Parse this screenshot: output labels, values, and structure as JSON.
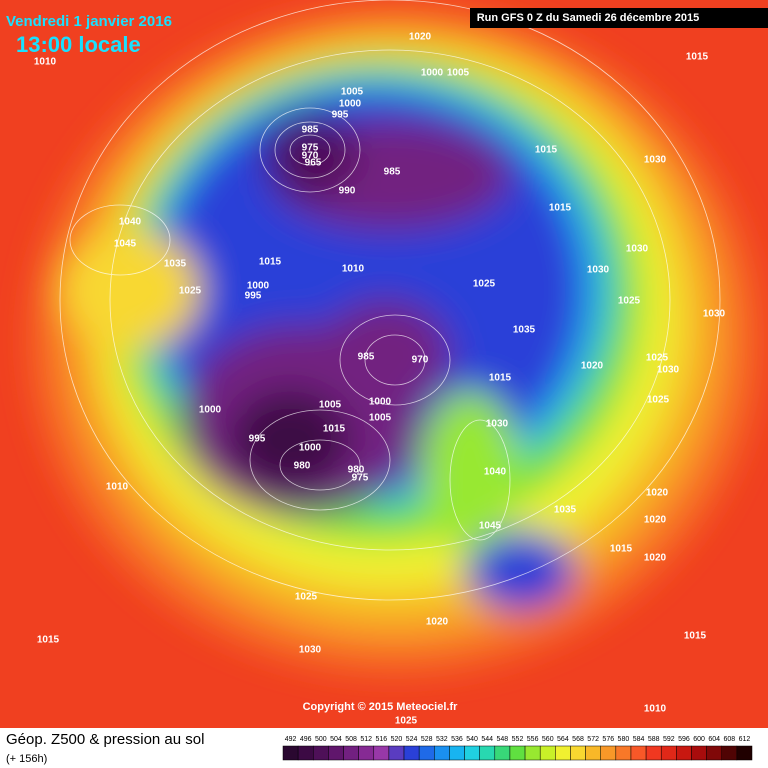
{
  "header": {
    "date": "Vendredi 1 janvier 2016",
    "time": "13:00 locale",
    "run": "Run GFS 0 Z du Samedi 26 décembre 2015"
  },
  "copyright": "Copyright © 2015 Meteociel.fr",
  "footer": {
    "title": "Géop. Z500 & pression au sol",
    "lead": "(+ 156h)"
  },
  "isobar_labels": [
    1010,
    1020,
    1005,
    1000,
    1005,
    1000,
    995,
    985,
    975,
    970,
    965,
    985,
    990,
    1015,
    1015,
    1030,
    1015,
    1030,
    1030,
    1025,
    1030,
    1040,
    1045,
    1035,
    1015,
    1010,
    1025,
    1000,
    995,
    1025,
    1035,
    1020,
    1025,
    1030,
    1025,
    985,
    970,
    1000,
    1005,
    1000,
    1005,
    1015,
    995,
    1030,
    1040,
    1000,
    980,
    980,
    975,
    1010,
    1035,
    1045,
    1020,
    1020,
    1015,
    1020,
    1025,
    1020,
    1030,
    1015,
    1015,
    1010,
    1025,
    1015
  ],
  "colorbar": {
    "values": [
      492,
      496,
      500,
      504,
      508,
      512,
      516,
      520,
      524,
      528,
      532,
      536,
      540,
      544,
      548,
      552,
      556,
      560,
      564,
      568,
      572,
      576,
      580,
      584,
      588,
      592,
      596,
      600,
      604,
      608,
      612
    ],
    "colors": [
      "#2a0830",
      "#3c0a44",
      "#4e1058",
      "#60166c",
      "#722080",
      "#862a94",
      "#9838a8",
      "#5a3cc0",
      "#2a40d8",
      "#1f6ae8",
      "#1a90f0",
      "#18b4f0",
      "#20d0e0",
      "#28d8b0",
      "#38d878",
      "#60e040",
      "#98e830",
      "#c8f028",
      "#f0f030",
      "#f8d830",
      "#f8b828",
      "#f89828",
      "#f87828",
      "#f85828",
      "#f03820",
      "#e02818",
      "#c81810",
      "#a80c0c",
      "#800808",
      "#500404",
      "#200000"
    ]
  }
}
